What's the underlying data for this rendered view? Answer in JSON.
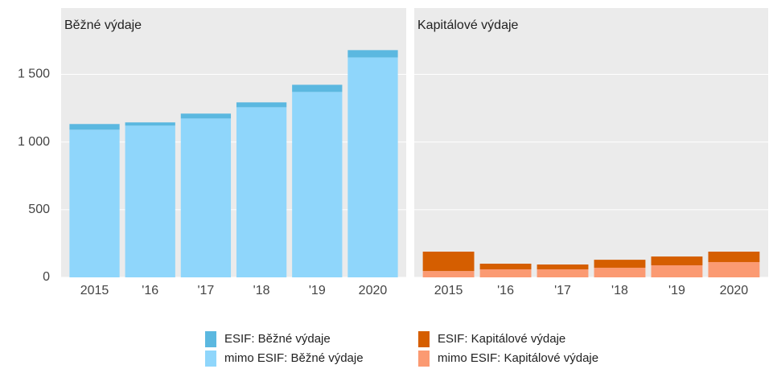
{
  "chart_data": [
    {
      "type": "bar",
      "stacked": true,
      "title": "Běžné výdaje",
      "categories": [
        "2015",
        "'16",
        "'17",
        "'18",
        "'19",
        "2020"
      ],
      "series": [
        {
          "name": "mimo ESIF: Běžné výdaje",
          "color": "#8fd6fb",
          "values": [
            1091,
            1121,
            1174,
            1257,
            1370,
            1625
          ]
        },
        {
          "name": "ESIF: Běžné výdaje",
          "color": "#5bb8e0",
          "values": [
            42,
            24,
            36,
            36,
            53,
            54
          ]
        }
      ],
      "ylim": [
        0,
        1990
      ],
      "yticks": [
        0,
        500,
        {
          "value": 1000,
          "label": "1 000"
        },
        {
          "value": 1500,
          "label": "1 500"
        }
      ],
      "grid": true
    },
    {
      "type": "bar",
      "stacked": true,
      "title": "Kapitálové výdaje",
      "categories": [
        "2015",
        "'16",
        "'17",
        "'18",
        "'19",
        "2020"
      ],
      "series": [
        {
          "name": "mimo ESIF: Kapitálové výdaje",
          "color": "#fb9a72",
          "values": [
            47,
            59,
            59,
            71,
            89,
            113
          ]
        },
        {
          "name": "ESIF: Kapitálové výdaje",
          "color": "#d55e00",
          "values": [
            143,
            42,
            36,
            59,
            65,
            77
          ]
        }
      ],
      "ylim": [
        0,
        1990
      ],
      "yticks": [
        0,
        500,
        {
          "value": 1000,
          "label": "1 000"
        },
        {
          "value": 1500,
          "label": "1 500"
        }
      ],
      "grid": true
    }
  ]
}
